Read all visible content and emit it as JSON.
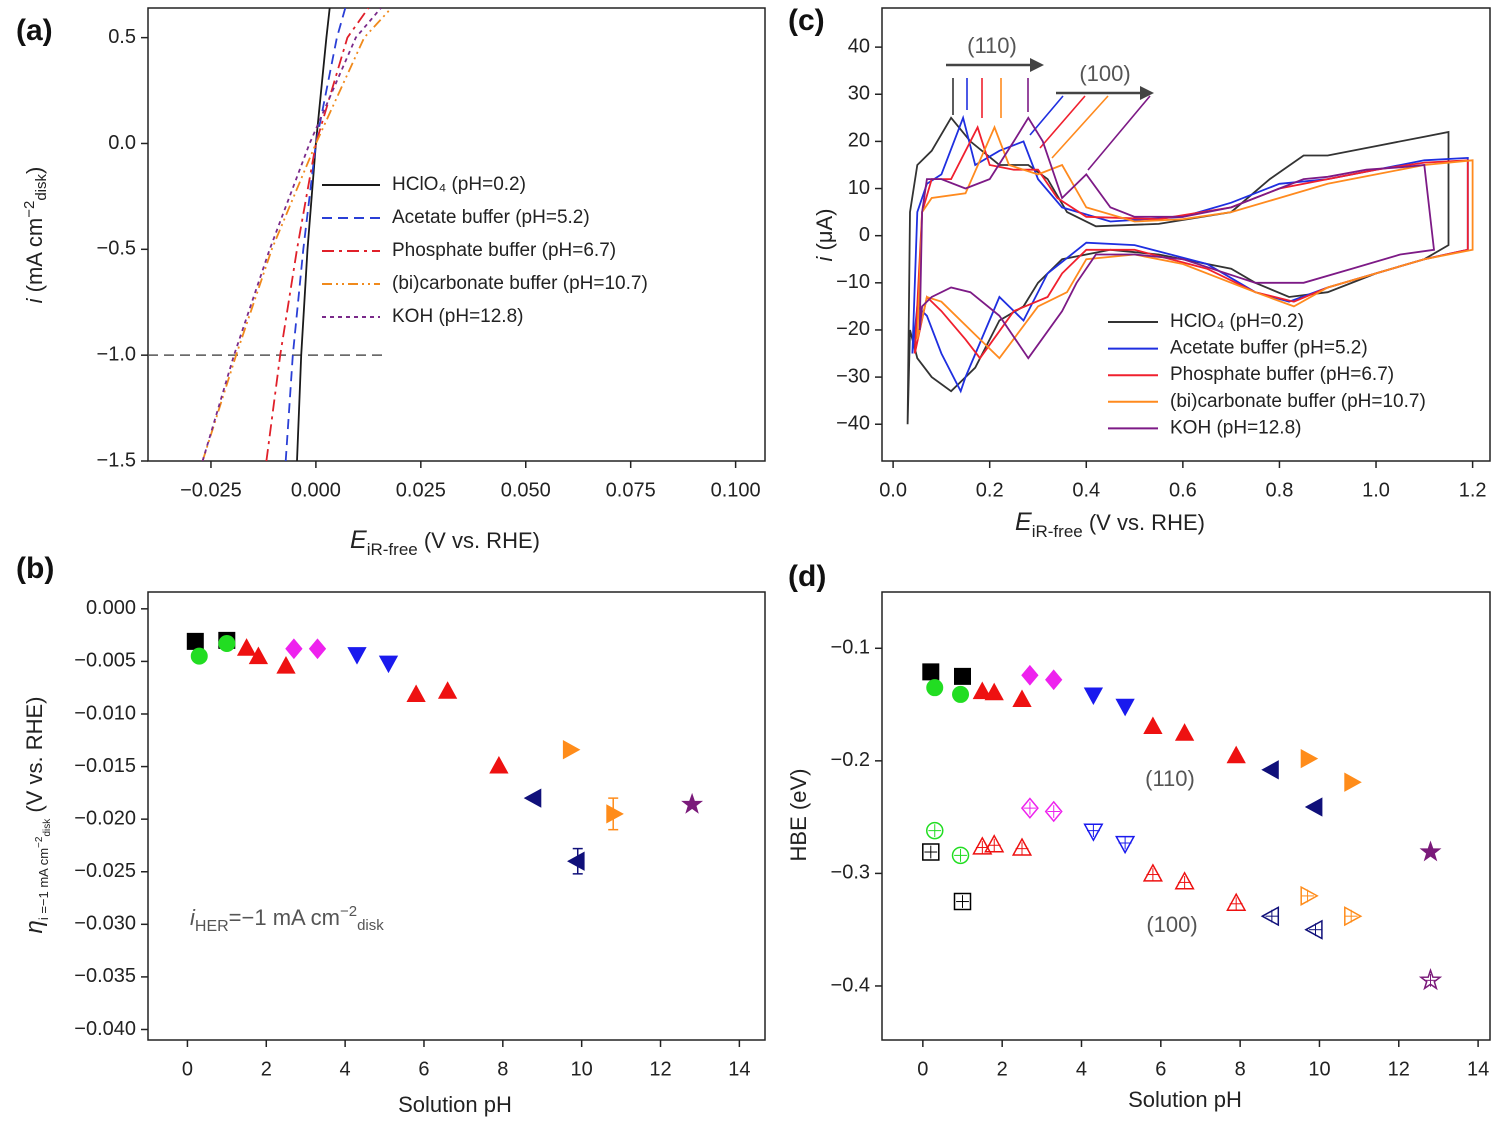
{
  "chart_data": [
    {
      "type": "line",
      "panel_label": "(a)",
      "grid": false,
      "legend": true,
      "xlabel": [
        "E",
        "iR-free",
        " (V vs. RHE)"
      ],
      "ylabel": [
        "i",
        " (mA cm",
        "−2",
        "disk",
        ")"
      ],
      "xlim": [
        -0.04,
        0.107
      ],
      "ylim": [
        -1.5,
        0.64
      ],
      "xticks": [
        {
          "value": -0.025,
          "label": "−0.025"
        },
        {
          "value": 0,
          "label": "0.000"
        },
        0.025,
        {
          "value": 0.05,
          "label": "0.050"
        },
        0.075,
        {
          "value": 0.1,
          "label": "0.100"
        }
      ],
      "yticks": [
        0.5,
        {
          "value": 0,
          "label": "0.0"
        },
        {
          "value": -0.5,
          "label": "−0.5"
        },
        {
          "value": -1,
          "label": "−1.0"
        },
        {
          "value": -1.5,
          "label": "−1.5"
        }
      ],
      "reference_line": {
        "y": -1,
        "x": [
          -0.04,
          0.017
        ],
        "color": "#555555",
        "dash": "dashed"
      },
      "series": [
        {
          "name": "HClO₄ (pH=0.2)",
          "color": "#1a1a1a",
          "dash": "solid",
          "x": [
            -0.0045,
            -0.0035,
            -0.002,
            0,
            0.0025,
            0.0033
          ],
          "values": [
            -1.5,
            -1,
            -0.5,
            0,
            0.5,
            0.64
          ]
        },
        {
          "name": "Acetate buffer (pH=5.2)",
          "color": "#2a3fd6",
          "dash": "dashed",
          "x": [
            -0.0072,
            -0.0055,
            -0.003,
            0,
            0.005,
            0.007
          ],
          "values": [
            -1.5,
            -1,
            -0.5,
            0,
            0.5,
            0.64
          ]
        },
        {
          "name": "Phosphate buffer (pH=6.7)",
          "color": "#e0202a",
          "dash": "dashdot",
          "x": [
            -0.0118,
            -0.0085,
            -0.0045,
            0,
            0.0075,
            0.0125
          ],
          "values": [
            -1.5,
            -1,
            -0.5,
            0,
            0.5,
            0.64
          ]
        },
        {
          "name": "(bi)carbonate buffer (pH=10.7)",
          "color": "#f08a1c",
          "dash": "dashdotdot",
          "x": [
            -0.027,
            -0.019,
            -0.0105,
            0,
            0.0115,
            0.018
          ],
          "values": [
            -1.5,
            -1,
            -0.5,
            0,
            0.5,
            0.64
          ]
        },
        {
          "name": "KOH (pH=12.8)",
          "color": "#7a2a8a",
          "dash": "dotted",
          "x": [
            -0.027,
            -0.0195,
            -0.011,
            -0.0015,
            0.0095,
            0.0155
          ],
          "values": [
            -1.5,
            -1,
            -0.5,
            0,
            0.5,
            0.64
          ]
        }
      ]
    },
    {
      "type": "scatter",
      "panel_label": "(b)",
      "grid": false,
      "xlabel": [
        "Solution pH"
      ],
      "ylabel": [
        "η",
        "i =−1 mA cm",
        "−2",
        "disk",
        " (V vs. RHE)"
      ],
      "annotation": [
        "i",
        "HER",
        "=−1 mA cm",
        "−2",
        "disk"
      ],
      "xlim": [
        -1,
        14.65
      ],
      "ylim": [
        -0.041,
        0.0016
      ],
      "xticks": [
        0,
        2,
        4,
        6,
        8,
        10,
        12,
        14
      ],
      "yticks": [
        {
          "value": 0,
          "label": "0.000"
        },
        {
          "value": -0.005,
          "label": "−0.005"
        },
        {
          "value": -0.01,
          "label": "−0.010"
        },
        {
          "value": -0.015,
          "label": "−0.015"
        },
        {
          "value": -0.02,
          "label": "−0.020"
        },
        {
          "value": -0.025,
          "label": "−0.025"
        },
        {
          "value": -0.03,
          "label": "−0.030"
        },
        {
          "value": -0.035,
          "label": "−0.035"
        },
        {
          "value": -0.04,
          "label": "−0.040"
        }
      ],
      "series": [
        {
          "marker": "square",
          "filled": true,
          "color": "#000000",
          "x": [
            0.2,
            1.0
          ],
          "values": [
            -0.0031,
            -0.003
          ]
        },
        {
          "marker": "circle",
          "filled": true,
          "color": "#22dd22",
          "x": [
            0.3,
            1.0
          ],
          "values": [
            -0.0045,
            -0.0033
          ]
        },
        {
          "marker": "triangle-up",
          "filled": true,
          "color": "#ee1111",
          "x": [
            1.5,
            1.8,
            2.5,
            5.8,
            6.6,
            7.9
          ],
          "values": [
            -0.0038,
            -0.0046,
            -0.0055,
            -0.0082,
            -0.0079,
            -0.015
          ]
        },
        {
          "marker": "diamond",
          "filled": true,
          "color": "#ee22ee",
          "x": [
            2.7,
            3.3
          ],
          "values": [
            -0.0038,
            -0.0038
          ]
        },
        {
          "marker": "triangle-down",
          "filled": true,
          "color": "#1a1aee",
          "x": [
            4.3,
            5.1
          ],
          "values": [
            -0.0043,
            -0.0051
          ]
        },
        {
          "marker": "triangle-left",
          "filled": true,
          "color": "#10107a",
          "x": [
            8.8,
            9.9
          ],
          "values": [
            -0.018,
            -0.024
          ],
          "errors": [
            null,
            0.0012
          ]
        },
        {
          "marker": "triangle-right",
          "filled": true,
          "color": "#ff8c1a",
          "x": [
            9.7,
            10.8
          ],
          "values": [
            -0.0134,
            -0.0195
          ],
          "errors": [
            null,
            0.0015
          ]
        },
        {
          "marker": "star",
          "filled": true,
          "color": "#7a1a7a",
          "x": [
            12.8
          ],
          "values": [
            -0.0186
          ]
        }
      ]
    },
    {
      "type": "line",
      "panel_label": "(c)",
      "grid": false,
      "legend": true,
      "xlabel": [
        "E",
        "iR-free",
        " (V vs. RHE)"
      ],
      "ylabel": [
        "i",
        " (μA)"
      ],
      "annotations": [
        "(110)",
        "(100)"
      ],
      "xlim": [
        -0.023,
        1.236
      ],
      "ylim": [
        -47.8,
        48.3
      ],
      "xticks": [
        {
          "value": 0,
          "label": "0.0"
        },
        0.2,
        0.4,
        0.6,
        0.8,
        {
          "value": 1,
          "label": "1.0"
        },
        1.2
      ],
      "yticks": [
        40,
        30,
        20,
        10,
        0,
        {
          "value": -10,
          "label": "−10"
        },
        {
          "value": -20,
          "label": "−20"
        },
        {
          "value": -30,
          "label": "−30"
        },
        {
          "value": -40,
          "label": "−40"
        }
      ],
      "series": [
        {
          "name": "HClO₄ (pH=0.2)",
          "color": "#333333",
          "dash": "solid",
          "x": [
            0.03,
            0.035,
            0.05,
            0.08,
            0.12,
            0.16,
            0.22,
            0.28,
            0.32,
            0.36,
            0.42,
            0.55,
            0.7,
            0.78,
            0.85,
            0.9,
            1.0,
            1.1,
            1.15,
            1.15,
            1.1,
            1.0,
            0.9,
            0.82,
            0.75,
            0.7,
            0.55,
            0.45,
            0.35,
            0.3,
            0.27,
            0.22,
            0.17,
            0.12,
            0.08,
            0.05,
            0.035,
            0.03
          ],
          "values": [
            -40,
            5,
            15,
            18,
            25,
            20,
            15,
            15,
            12,
            5,
            2,
            2.5,
            5,
            12,
            17,
            17,
            19,
            21,
            22,
            -2,
            -5,
            -8,
            -12,
            -13,
            -10,
            -7,
            -4,
            -3,
            -5,
            -10,
            -15,
            -18,
            -28,
            -33,
            -30,
            -26,
            -20,
            -40
          ]
        },
        {
          "name": "Acetate buffer (pH=5.2)",
          "color": "#1f2fe0",
          "dash": "solid",
          "x": [
            0.04,
            0.05,
            0.07,
            0.1,
            0.145,
            0.17,
            0.22,
            0.27,
            0.3,
            0.35,
            0.45,
            0.6,
            0.7,
            0.8,
            0.9,
            1.0,
            1.1,
            1.19,
            1.19,
            1.1,
            1.0,
            0.9,
            0.82,
            0.75,
            0.65,
            0.5,
            0.4,
            0.32,
            0.27,
            0.22,
            0.15,
            0.14,
            0.1,
            0.07,
            0.05,
            0.04
          ],
          "values": [
            -25,
            5,
            11,
            13,
            25,
            15,
            18,
            20,
            12,
            6,
            3,
            4,
            7,
            11,
            12,
            14,
            16,
            16.5,
            -3,
            -5,
            -8,
            -11,
            -14,
            -12,
            -6,
            -2,
            -1.5,
            -8,
            -18,
            -13,
            -30,
            -33,
            -25,
            -17,
            -15,
            -25
          ]
        },
        {
          "name": "Phosphate buffer (pH=6.7)",
          "color": "#f0202e",
          "dash": "solid",
          "x": [
            0.045,
            0.06,
            0.08,
            0.12,
            0.175,
            0.2,
            0.25,
            0.3,
            0.34,
            0.4,
            0.55,
            0.7,
            0.8,
            0.9,
            1.0,
            1.1,
            1.19,
            1.19,
            1.1,
            1.0,
            0.9,
            0.83,
            0.75,
            0.65,
            0.5,
            0.4,
            0.35,
            0.32,
            0.25,
            0.18,
            0.15,
            0.1,
            0.07,
            0.045
          ],
          "values": [
            -25,
            5,
            12,
            12,
            23,
            15,
            14,
            14,
            8,
            4,
            3.5,
            6,
            10,
            12,
            14,
            15.5,
            16,
            -3,
            -5,
            -8,
            -11,
            -14,
            -12,
            -7,
            -3,
            -3,
            -8,
            -13,
            -16,
            -26,
            -22,
            -16,
            -13,
            -25
          ]
        },
        {
          "name": "(bi)carbonate buffer (pH=10.7)",
          "color": "#ff8a1e",
          "dash": "solid",
          "x": [
            0.05,
            0.06,
            0.08,
            0.15,
            0.21,
            0.24,
            0.3,
            0.35,
            0.4,
            0.5,
            0.6,
            0.7,
            0.8,
            0.9,
            1.0,
            1.1,
            1.2,
            1.2,
            1.1,
            1.0,
            0.9,
            0.83,
            0.75,
            0.6,
            0.5,
            0.4,
            0.36,
            0.3,
            0.22,
            0.18,
            0.1,
            0.07,
            0.05
          ],
          "values": [
            -22,
            5,
            8,
            9,
            23,
            15,
            13,
            15,
            6,
            3,
            3.5,
            5,
            8,
            11,
            13,
            15,
            16,
            -3,
            -5,
            -8,
            -11,
            -15,
            -12,
            -6,
            -4,
            -5,
            -12,
            -15,
            -26,
            -22,
            -14,
            -13,
            -22
          ]
        },
        {
          "name": "KOH (pH=12.8)",
          "color": "#7d1a86",
          "dash": "solid",
          "x": [
            0.055,
            0.06,
            0.07,
            0.1,
            0.15,
            0.2,
            0.25,
            0.28,
            0.31,
            0.35,
            0.4,
            0.45,
            0.5,
            0.6,
            0.7,
            0.8,
            0.85,
            0.9,
            0.98,
            1.05,
            1.1,
            1.12,
            1.05,
            0.95,
            0.85,
            0.75,
            0.6,
            0.5,
            0.42,
            0.38,
            0.35,
            0.28,
            0.22,
            0.16,
            0.12,
            0.08,
            0.06,
            0.055
          ],
          "values": [
            -20,
            5,
            12,
            12,
            10,
            12,
            20,
            25,
            20,
            8,
            13,
            6,
            4,
            4,
            6,
            10,
            12,
            12.5,
            14,
            14.5,
            15,
            -3,
            -4,
            -7,
            -10,
            -10,
            -5,
            -4,
            -4,
            -10,
            -16,
            -26,
            -17,
            -12,
            -11,
            -13,
            -15,
            -20
          ]
        }
      ]
    },
    {
      "type": "scatter",
      "panel_label": "(d)",
      "grid": false,
      "xlabel": [
        "Solution pH"
      ],
      "ylabel": [
        "HBE (eV)"
      ],
      "annotations": [
        "(110)",
        "(100)"
      ],
      "xlim": [
        -1.03,
        14.3
      ],
      "ylim": [
        -0.448,
        -0.05
      ],
      "xticks": [
        0,
        2,
        4,
        6,
        8,
        10,
        12,
        14
      ],
      "yticks": [
        {
          "value": -0.1,
          "label": "−0.1"
        },
        {
          "value": -0.2,
          "label": "−0.2"
        },
        {
          "value": -0.3,
          "label": "−0.3"
        },
        {
          "value": -0.4,
          "label": "−0.4"
        }
      ],
      "series": [
        {
          "marker": "square",
          "filled": true,
          "color": "#000000",
          "x": [
            0.2,
            1.0
          ],
          "values": [
            -0.121,
            -0.125
          ]
        },
        {
          "marker": "circle",
          "filled": true,
          "color": "#22dd22",
          "x": [
            0.3,
            0.95
          ],
          "values": [
            -0.135,
            -0.141
          ]
        },
        {
          "marker": "triangle-up",
          "filled": true,
          "color": "#ee1111",
          "x": [
            1.5,
            1.8,
            2.5,
            5.8,
            6.6,
            7.9
          ],
          "values": [
            -0.139,
            -0.14,
            -0.146,
            -0.17,
            -0.176,
            -0.196
          ]
        },
        {
          "marker": "diamond",
          "filled": true,
          "color": "#ee22ee",
          "x": [
            2.7,
            3.3
          ],
          "values": [
            -0.124,
            -0.128
          ]
        },
        {
          "marker": "triangle-down",
          "filled": true,
          "color": "#1a1aee",
          "x": [
            4.3,
            5.1
          ],
          "values": [
            -0.141,
            -0.151
          ]
        },
        {
          "marker": "triangle-left",
          "filled": true,
          "color": "#10107a",
          "x": [
            8.8,
            9.9
          ],
          "values": [
            -0.208,
            -0.241
          ]
        },
        {
          "marker": "triangle-right",
          "filled": true,
          "color": "#ff8c1a",
          "x": [
            9.7,
            10.8
          ],
          "values": [
            -0.198,
            -0.219
          ]
        },
        {
          "marker": "star",
          "filled": true,
          "color": "#7a1a7a",
          "x": [
            12.8
          ],
          "values": [
            -0.281
          ]
        },
        {
          "marker": "square",
          "filled": false,
          "color": "#000000",
          "x": [
            0.2,
            1.0
          ],
          "values": [
            -0.281,
            -0.325
          ]
        },
        {
          "marker": "circle",
          "filled": false,
          "color": "#22dd22",
          "x": [
            0.3,
            0.95
          ],
          "values": [
            -0.262,
            -0.284
          ]
        },
        {
          "marker": "triangle-up",
          "filled": false,
          "color": "#ee1111",
          "x": [
            1.5,
            1.8,
            2.5,
            5.8,
            6.6,
            7.9
          ],
          "values": [
            -0.277,
            -0.275,
            -0.278,
            -0.301,
            -0.308,
            -0.327
          ]
        },
        {
          "marker": "diamond",
          "filled": false,
          "color": "#ee22ee",
          "x": [
            2.7,
            3.3
          ],
          "values": [
            -0.242,
            -0.245
          ]
        },
        {
          "marker": "triangle-down",
          "filled": false,
          "color": "#1a1aee",
          "x": [
            4.3,
            5.1
          ],
          "values": [
            -0.262,
            -0.273
          ]
        },
        {
          "marker": "triangle-left",
          "filled": false,
          "color": "#10107a",
          "x": [
            8.8,
            9.9
          ],
          "values": [
            -0.338,
            -0.35
          ]
        },
        {
          "marker": "triangle-right",
          "filled": false,
          "color": "#ff8c1a",
          "x": [
            9.7,
            10.8
          ],
          "values": [
            -0.32,
            -0.338
          ]
        },
        {
          "marker": "star",
          "filled": false,
          "color": "#7a1a7a",
          "x": [
            12.8
          ],
          "values": [
            -0.395
          ]
        }
      ]
    }
  ]
}
